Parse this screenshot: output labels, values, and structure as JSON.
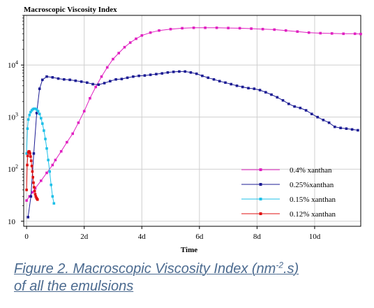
{
  "chart_data": {
    "type": "line",
    "title": "Macroscopic Viscosity Index",
    "xlabel": "Time",
    "ylabel": "",
    "x_unit": "days",
    "xlim": [
      -0.1,
      11.6
    ],
    "ylim": [
      8,
      90000
    ],
    "yscale": "log",
    "x_ticks": [
      0,
      2,
      4,
      6,
      8,
      10
    ],
    "x_tick_labels": [
      "0",
      "2d",
      "4d",
      "6d",
      "8d",
      "10d"
    ],
    "y_ticks": [
      10,
      100,
      1000,
      10000
    ],
    "y_tick_labels": [
      {
        "base": "10",
        "exp": ""
      },
      {
        "base": "10",
        "exp": "2"
      },
      {
        "base": "10",
        "exp": "3"
      },
      {
        "base": "10",
        "exp": "4"
      }
    ],
    "grid": true,
    "legend_position": "bottom-right",
    "series": [
      {
        "name": "0.4% xanthan",
        "color": "#e020c0",
        "x": [
          0,
          0.1,
          0.2,
          0.3,
          0.5,
          0.7,
          0.9,
          1.0,
          1.2,
          1.4,
          1.6,
          1.8,
          2.0,
          2.2,
          2.4,
          2.6,
          2.8,
          3.0,
          3.2,
          3.4,
          3.6,
          3.8,
          4.0,
          4.3,
          4.6,
          5.0,
          5.4,
          5.8,
          6.2,
          6.6,
          7.0,
          7.4,
          7.8,
          8.2,
          8.6,
          9.0,
          9.4,
          9.8,
          10.2,
          10.6,
          11.0,
          11.4,
          11.6
        ],
        "y": [
          25,
          30,
          36,
          43,
          60,
          85,
          120,
          150,
          220,
          330,
          480,
          780,
          1300,
          2300,
          3800,
          6000,
          9000,
          13000,
          17000,
          22000,
          27000,
          32000,
          37000,
          42000,
          46000,
          49000,
          51000,
          52000,
          52000,
          52000,
          51500,
          51000,
          50000,
          49000,
          48000,
          46000,
          44000,
          42000,
          41000,
          40500,
          40000,
          40000,
          39500
        ]
      },
      {
        "name": "0.25%xanthan",
        "color": "#1c1c94",
        "x": [
          0.05,
          0.15,
          0.25,
          0.35,
          0.45,
          0.55,
          0.7,
          0.9,
          1.1,
          1.3,
          1.5,
          1.7,
          1.9,
          2.1,
          2.3,
          2.5,
          2.7,
          2.9,
          3.1,
          3.3,
          3.5,
          3.7,
          3.9,
          4.1,
          4.3,
          4.5,
          4.7,
          4.9,
          5.1,
          5.3,
          5.5,
          5.7,
          5.9,
          6.1,
          6.3,
          6.5,
          6.7,
          6.9,
          7.1,
          7.3,
          7.5,
          7.7,
          7.9,
          8.1,
          8.3,
          8.5,
          8.7,
          8.9,
          9.1,
          9.3,
          9.5,
          9.7,
          9.9,
          10.1,
          10.3,
          10.5,
          10.7,
          10.9,
          11.1,
          11.3,
          11.5
        ],
        "y": [
          12,
          30,
          200,
          1200,
          3500,
          5200,
          6000,
          5800,
          5500,
          5300,
          5200,
          5000,
          4800,
          4600,
          4300,
          4200,
          4500,
          4900,
          5300,
          5400,
          5700,
          6000,
          6200,
          6300,
          6500,
          6700,
          6900,
          7200,
          7400,
          7500,
          7500,
          7200,
          6800,
          6200,
          5700,
          5300,
          4900,
          4600,
          4300,
          4000,
          3800,
          3600,
          3500,
          3300,
          3000,
          2700,
          2400,
          2100,
          1800,
          1600,
          1500,
          1350,
          1150,
          1000,
          880,
          780,
          650,
          620,
          600,
          580,
          560
        ]
      },
      {
        "name": "0.15% xanthan",
        "color": "#1ec0e8",
        "x": [
          0,
          0.03,
          0.06,
          0.1,
          0.14,
          0.18,
          0.22,
          0.26,
          0.3,
          0.35,
          0.4,
          0.45,
          0.5,
          0.55,
          0.6,
          0.65,
          0.7,
          0.75,
          0.8,
          0.85,
          0.9,
          0.95
        ],
        "y": [
          200,
          600,
          900,
          1100,
          1250,
          1350,
          1420,
          1450,
          1450,
          1400,
          1300,
          1150,
          950,
          750,
          550,
          380,
          250,
          150,
          90,
          50,
          30,
          22
        ]
      },
      {
        "name": "0.12% xanthan",
        "color": "#e01010",
        "x": [
          0,
          0.02,
          0.04,
          0.06,
          0.08,
          0.1,
          0.12,
          0.14,
          0.16,
          0.18,
          0.2,
          0.22,
          0.24,
          0.26,
          0.28,
          0.3,
          0.32,
          0.34,
          0.36,
          0.38
        ],
        "y": [
          40,
          120,
          180,
          210,
          220,
          215,
          200,
          175,
          145,
          115,
          90,
          70,
          55,
          45,
          38,
          33,
          30,
          28,
          27,
          26
        ]
      }
    ]
  },
  "caption": {
    "line1_text": "Figure 2. Macroscopic Viscosity Index (nm",
    "line1_sup": "-2",
    "line1_end": ".s)",
    "line2": "of all the emulsions"
  }
}
